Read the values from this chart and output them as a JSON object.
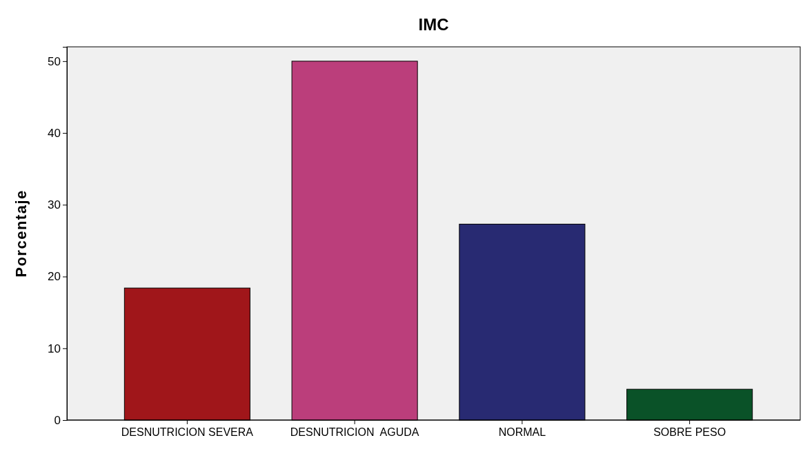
{
  "chart_data": {
    "type": "bar",
    "title": "IMC",
    "ylabel": "Porcentaje",
    "categories": [
      "DESNUTRICION SEVERA",
      "DESNUTRICION  AGUDA",
      "NORMAL",
      "SOBRE PESO"
    ],
    "values": [
      18.4,
      50.0,
      27.3,
      4.3
    ],
    "colors": [
      "#a0161a",
      "#bb3e7b",
      "#282a72",
      "#0a5228"
    ],
    "ylim": [
      0,
      52
    ],
    "yticks": [
      0,
      10,
      20,
      30,
      40,
      50
    ],
    "grid": false
  }
}
